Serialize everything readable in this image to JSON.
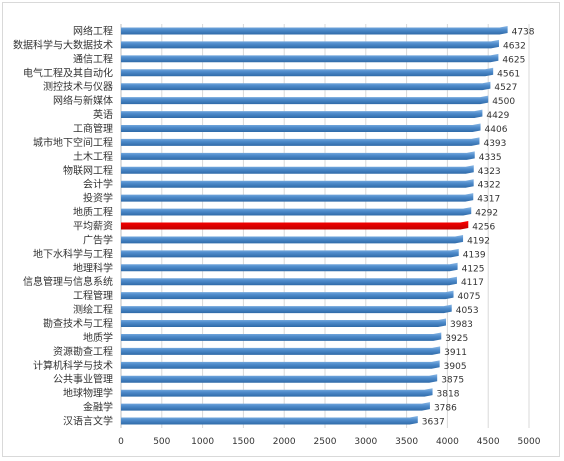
{
  "chart_data": {
    "type": "bar",
    "orientation": "horizontal",
    "categories": [
      "网络工程",
      "数据科学与大数据技术",
      "通信工程",
      "电气工程及其自动化",
      "测控技术与仪器",
      "网络与新媒体",
      "英语",
      "工商管理",
      "城市地下空间工程",
      "土木工程",
      "物联网工程",
      "会计学",
      "投资学",
      "地质工程",
      "平均薪资",
      "广告学",
      "地下水科学与工程",
      "地理科学",
      "信息管理与信息系统",
      "工程管理",
      "测绘工程",
      "勘查技术与工程",
      "地质学",
      "资源勘查工程",
      "计算机科学与技术",
      "公共事业管理",
      "地球物理学",
      "金融学",
      "汉语言文学"
    ],
    "values": [
      4738,
      4632,
      4625,
      4561,
      4527,
      4500,
      4429,
      4406,
      4393,
      4335,
      4323,
      4322,
      4317,
      4292,
      4256,
      4192,
      4139,
      4125,
      4117,
      4075,
      4053,
      3983,
      3925,
      3911,
      3905,
      3875,
      3818,
      3786,
      3637
    ],
    "highlight_category": "平均薪资",
    "xlim": [
      0,
      5000
    ],
    "xticks": [
      0,
      500,
      1000,
      1500,
      2000,
      2500,
      3000,
      3500,
      4000,
      4500,
      5000
    ],
    "grid": true,
    "legend": "none",
    "title": "",
    "xlabel": "",
    "ylabel": ""
  },
  "colors": {
    "bar": "#4f8ccc",
    "bar_dark": "#2f6aa8",
    "bar_light": "#8ab8e6",
    "highlight": "#ff0000",
    "highlight_dark": "#c00000",
    "grid": "#d9d9d9",
    "axis": "#bfbfbf"
  }
}
